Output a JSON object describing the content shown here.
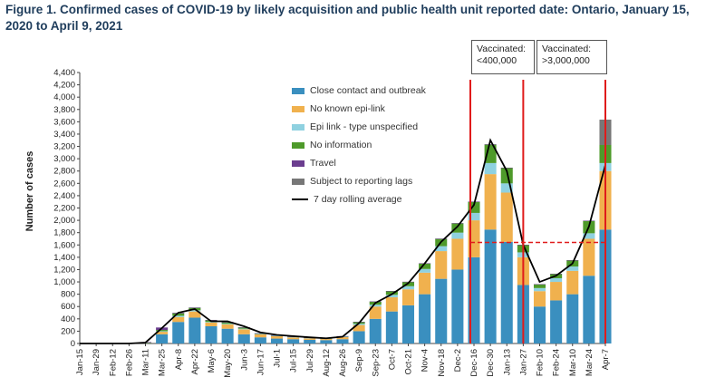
{
  "title": "Figure 1. Confirmed cases of COVID-19 by likely acquisition and public health unit reported date: Ontario, January 15, 2020 to April 9, 2021",
  "annotations": {
    "vaccinated_1": [
      "Vaccinated:",
      "<400,000"
    ],
    "vaccinated_2": [
      "Vaccinated:",
      ">3,000,000"
    ]
  },
  "colors": {
    "close_contact": "#3a8fbf",
    "no_epi_link": "#f0b14e",
    "epi_unspecified": "#8fd1e0",
    "no_information": "#4e9a2a",
    "travel": "#6b3d8f",
    "reporting_lags": "#777777",
    "rolling_avg": "#000000",
    "marker": "#e01b1b"
  },
  "legend": [
    {
      "key": "close_contact",
      "label": "Close contact and outbreak",
      "kind": "box"
    },
    {
      "key": "no_epi_link",
      "label": "No known epi-link",
      "kind": "box"
    },
    {
      "key": "epi_unspecified",
      "label": "Epi link - type unspecified",
      "kind": "box"
    },
    {
      "key": "no_information",
      "label": "No information",
      "kind": "box"
    },
    {
      "key": "travel",
      "label": "Travel",
      "kind": "box"
    },
    {
      "key": "reporting_lags",
      "label": "Subject to reporting lags",
      "kind": "box"
    },
    {
      "key": "rolling_avg",
      "label": "7 day rolling average",
      "kind": "line"
    }
  ],
  "chart_data": {
    "type": "bar",
    "stacked": true,
    "ylabel": "Number of cases",
    "ylim": [
      0,
      4400
    ],
    "yticks": [
      0,
      200,
      400,
      600,
      800,
      1000,
      1200,
      1400,
      1600,
      1800,
      2000,
      2200,
      2400,
      2600,
      2800,
      3000,
      3200,
      3400,
      3600,
      3800,
      4000,
      4200,
      4400
    ],
    "categories": [
      "Jan-15",
      "Jan-29",
      "Feb-12",
      "Feb-26",
      "Mar-11",
      "Mar-25",
      "Apr-8",
      "Apr-22",
      "May-6",
      "May-20",
      "Jun-3",
      "Jun-17",
      "Jul-1",
      "Jul-15",
      "Jul-29",
      "Aug-12",
      "Aug-26",
      "Sep-9",
      "Sep-23",
      "Oct-7",
      "Oct-21",
      "Nov-4",
      "Nov-18",
      "Dec-2",
      "Dec-16",
      "Dec-30",
      "Jan-13",
      "Jan-27",
      "Feb-10",
      "Feb-24",
      "Mar-10",
      "Mar-24",
      "Apr-7"
    ],
    "series": [
      {
        "name": "Close contact and outbreak",
        "values": [
          0,
          0,
          0,
          0,
          10,
          150,
          350,
          420,
          280,
          240,
          150,
          100,
          80,
          70,
          60,
          55,
          70,
          200,
          400,
          520,
          620,
          800,
          1050,
          1200,
          1400,
          1850,
          1650,
          950,
          600,
          700,
          800,
          1100,
          1850
        ]
      },
      {
        "name": "No known epi-link",
        "values": [
          0,
          0,
          0,
          0,
          2,
          40,
          80,
          100,
          60,
          70,
          80,
          50,
          40,
          30,
          25,
          20,
          35,
          100,
          200,
          230,
          260,
          350,
          450,
          500,
          600,
          900,
          800,
          450,
          250,
          300,
          380,
          600,
          950
        ]
      },
      {
        "name": "Epi link - type unspecified",
        "values": [
          0,
          0,
          0,
          0,
          0,
          10,
          20,
          20,
          10,
          10,
          10,
          5,
          5,
          5,
          5,
          5,
          5,
          20,
          30,
          40,
          50,
          60,
          80,
          100,
          120,
          180,
          150,
          80,
          50,
          60,
          70,
          90,
          130
        ]
      },
      {
        "name": "No information",
        "values": [
          0,
          0,
          0,
          0,
          1,
          20,
          40,
          40,
          30,
          25,
          20,
          10,
          8,
          6,
          6,
          5,
          8,
          30,
          50,
          60,
          70,
          90,
          120,
          150,
          180,
          300,
          250,
          120,
          60,
          70,
          100,
          200,
          300
        ]
      },
      {
        "name": "Travel",
        "values": [
          0,
          0,
          0,
          2,
          10,
          40,
          10,
          5,
          3,
          3,
          3,
          2,
          2,
          2,
          2,
          2,
          2,
          2,
          3,
          3,
          3,
          3,
          3,
          5,
          5,
          5,
          5,
          3,
          3,
          3,
          3,
          5,
          5
        ]
      },
      {
        "name": "Subject to reporting lags",
        "values": [
          0,
          0,
          0,
          0,
          0,
          0,
          0,
          0,
          0,
          0,
          0,
          0,
          0,
          0,
          0,
          0,
          0,
          0,
          0,
          0,
          0,
          0,
          0,
          0,
          0,
          0,
          0,
          0,
          0,
          0,
          0,
          0,
          400
        ]
      }
    ],
    "rolling_average": {
      "name": "7 day rolling average",
      "values": [
        0,
        0,
        0,
        0,
        15,
        250,
        500,
        560,
        360,
        360,
        280,
        180,
        140,
        120,
        100,
        85,
        110,
        330,
        660,
        800,
        980,
        1300,
        1650,
        1900,
        2250,
        3300,
        2800,
        1600,
        1000,
        1100,
        1300,
        1900,
        2900
      ]
    },
    "reference_lines": {
      "vertical": [
        "Dec-16",
        "Jan-27",
        "Apr-7"
      ],
      "horizontal_value": 1640
    }
  }
}
